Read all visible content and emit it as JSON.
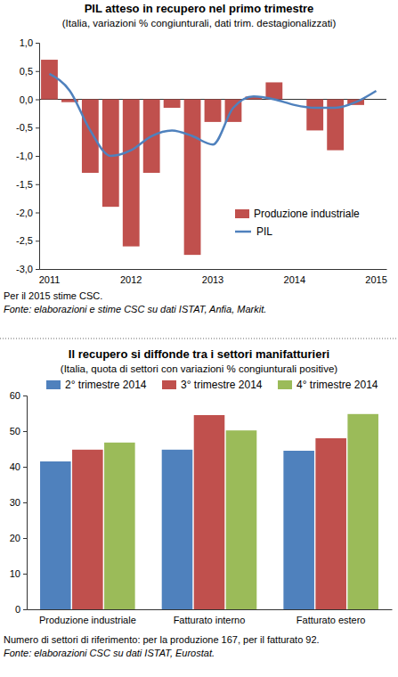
{
  "chart_data": [
    {
      "type": "bar",
      "title": "PIL atteso in recupero nel primo trimestre",
      "subtitle": "(Italia, variazioni % congiunturali, dati trim. destagionalizzati)",
      "categories": [
        "2011",
        null,
        null,
        null,
        "2012",
        null,
        null,
        null,
        "2013",
        null,
        null,
        null,
        "2014",
        null,
        null,
        null,
        "2015"
      ],
      "series": [
        {
          "name": "Produzione industriale",
          "type": "bar",
          "color": "#c0504d",
          "values": [
            0.7,
            -0.05,
            -1.3,
            -1.9,
            -2.6,
            -1.3,
            -0.15,
            -2.75,
            -0.4,
            -0.4,
            0.05,
            0.3,
            0.0,
            -0.55,
            -0.9,
            -0.1,
            null
          ]
        },
        {
          "name": "PIL",
          "type": "line",
          "color": "#4f81bd",
          "values": [
            0.45,
            0.15,
            -0.55,
            -1.0,
            -0.9,
            -0.65,
            -0.55,
            -0.65,
            -0.8,
            -0.15,
            0.05,
            0.0,
            -0.1,
            -0.15,
            -0.15,
            -0.05,
            0.15
          ]
        }
      ],
      "ylim": [
        -3.0,
        1.0
      ],
      "yticks": [
        {
          "value": 1.0,
          "label": "1,0"
        },
        {
          "value": 0.5,
          "label": "0,5"
        },
        {
          "value": 0.0,
          "label": "0,0"
        },
        {
          "value": -0.5,
          "label": "-0,5"
        },
        {
          "value": -1.0,
          "label": "-1,0"
        },
        {
          "value": -1.5,
          "label": "-1,5"
        },
        {
          "value": -2.0,
          "label": "-2,0"
        },
        {
          "value": -2.5,
          "label": "-2,5"
        },
        {
          "value": -3.0,
          "label": "-3,0"
        }
      ],
      "grid": false,
      "legend": "bottom-right",
      "annotations": [
        "Per il 2015 stime CSC.",
        "Fonte: elaborazioni e stime CSC su dati ISTAT, Anfia, Markit."
      ]
    },
    {
      "type": "bar",
      "title": "Il recupero si diffonde tra i settori manifatturieri",
      "subtitle": "(Italia, quota di settori con variazioni % congiunturali positive)",
      "categories": [
        "Produzione industriale",
        "Fatturato interno",
        "Fatturato estero"
      ],
      "series": [
        {
          "name": "2° trimestre 2014",
          "color": "#4f81bd",
          "values": [
            41.5,
            44.8,
            44.5
          ]
        },
        {
          "name": "3° trimestre 2014",
          "color": "#c0504d",
          "values": [
            44.8,
            54.5,
            48.0
          ]
        },
        {
          "name": "4° trimestre 2014",
          "color": "#9bbb59",
          "values": [
            46.8,
            50.2,
            54.8
          ]
        }
      ],
      "ylim": [
        0,
        60
      ],
      "yticks": [
        0,
        10,
        20,
        30,
        40,
        50,
        60
      ],
      "grid": false,
      "legend": "top",
      "annotations": [
        "Numero di settori di riferimento: per la produzione 167, per il fatturato 92.",
        "Fonte: elaborazioni CSC su dati ISTAT, Eurostat."
      ]
    }
  ]
}
